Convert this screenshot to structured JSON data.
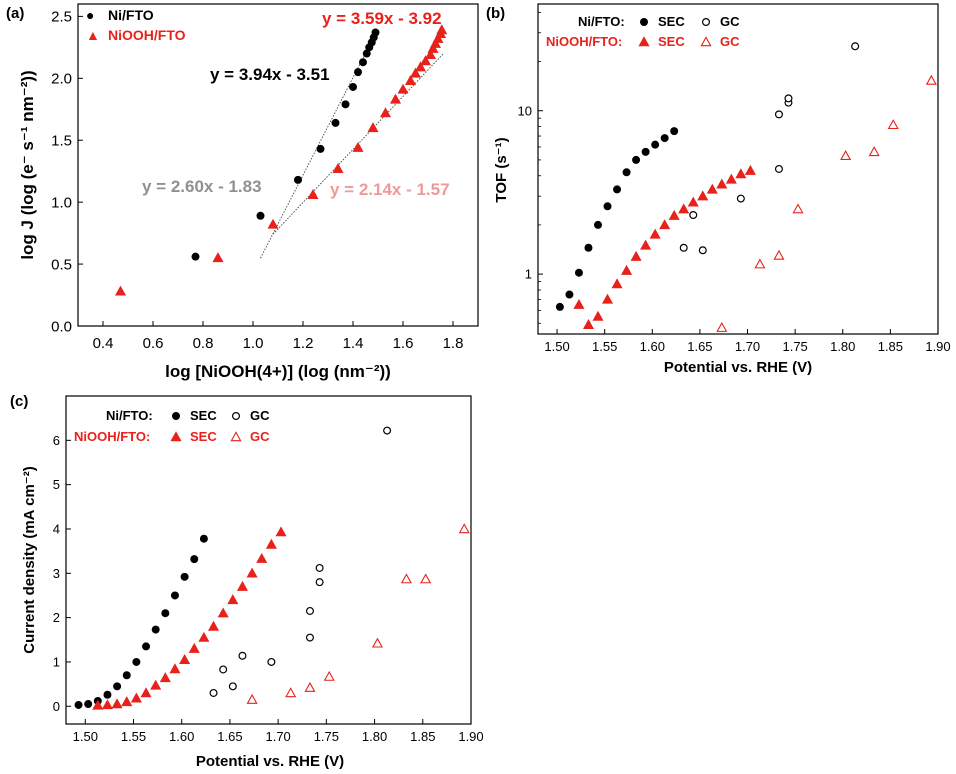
{
  "panels": [
    {
      "label": "(a)",
      "xlabel": "log [NiOOH(4+)] (log (nm⁻²))",
      "xticks": [
        "0.4",
        "0.6",
        "0.8",
        "1.0",
        "1.2",
        "1.4",
        "1.6",
        "1.8"
      ],
      "yticks": [
        "0.0",
        "0.5",
        "1.0",
        "1.5",
        "2.0",
        "2.5"
      ],
      "legend": [
        {
          "symbol": "●",
          "text": "Ni/FTO",
          "color": "#000000"
        },
        {
          "symbol": "▲",
          "text": "NiOOH/FTO",
          "color": "#e8221b"
        }
      ],
      "annotations": [
        {
          "text": "y = 3.59x - 3.92",
          "color": "#e8221b"
        },
        {
          "text": "y = 3.94x - 3.51",
          "color": "#000000"
        },
        {
          "text": "y = 2.60x - 1.83",
          "color": "#909090"
        },
        {
          "text": "y = 2.14x - 1.57",
          "color": "#ef9a9a"
        }
      ]
    },
    {
      "label": "(b)",
      "xlabel": "Potential vs. RHE (V)",
      "xticks": [
        "1.50",
        "1.55",
        "1.60",
        "1.65",
        "1.70",
        "1.75",
        "1.80",
        "1.85",
        "1.90"
      ],
      "yticks": [
        "1",
        "10"
      ],
      "legend": {
        "row1_label": "Ni/FTO:",
        "row2_label": "NiOOH/FTO:",
        "sec": "SEC",
        "gc": "GC"
      }
    },
    {
      "label": "(c)",
      "xlabel": "Potential vs. RHE (V)",
      "ylabel": "Current density (mA cm⁻²)",
      "xticks": [
        "1.50",
        "1.55",
        "1.60",
        "1.65",
        "1.70",
        "1.75",
        "1.80",
        "1.85",
        "1.90"
      ],
      "yticks": [
        "0",
        "1",
        "2",
        "3",
        "4",
        "5",
        "6"
      ],
      "legend": {
        "row1_label": "Ni/FTO:",
        "row2_label": "NiOOH/FTO:",
        "sec": "SEC",
        "gc": "GC"
      }
    }
  ],
  "colors": {
    "ni": "#000000",
    "niooh": "#e8221b",
    "grey_fit": "#909090",
    "pink_fit": "#ef9a9a"
  },
  "chart_data": [
    {
      "type": "scatter",
      "panel": "(a)",
      "ylabel": "log J (log (e⁻ s⁻¹ nm⁻²))",
      "xlim": [
        0.3,
        1.9
      ],
      "ylim": [
        0.0,
        2.6
      ],
      "series": [
        {
          "name": "Ni/FTO",
          "marker": "circle",
          "x": [
            0.77,
            1.03,
            1.18,
            1.27,
            1.33,
            1.37,
            1.4,
            1.42,
            1.44,
            1.455,
            1.465,
            1.475,
            1.483,
            1.49
          ],
          "y": [
            0.56,
            0.89,
            1.18,
            1.43,
            1.64,
            1.79,
            1.93,
            2.05,
            2.13,
            2.2,
            2.25,
            2.29,
            2.33,
            2.37
          ]
        },
        {
          "name": "NiOOH/FTO",
          "marker": "triangle",
          "x": [
            0.47,
            0.86,
            1.08,
            1.24,
            1.34,
            1.42,
            1.48,
            1.53,
            1.57,
            1.6,
            1.63,
            1.65,
            1.67,
            1.69,
            1.71,
            1.72,
            1.73,
            1.74,
            1.75,
            1.755
          ],
          "y": [
            0.28,
            0.55,
            0.82,
            1.06,
            1.27,
            1.44,
            1.6,
            1.72,
            1.83,
            1.91,
            1.98,
            2.04,
            2.09,
            2.14,
            2.19,
            2.24,
            2.28,
            2.32,
            2.36,
            2.39
          ]
        }
      ],
      "fit_lines": [
        {
          "equation": "y = 3.94x - 3.51",
          "x": [
            1.03,
            1.49
          ]
        },
        {
          "equation": "y = 2.14x - 1.57",
          "x": [
            1.08,
            1.76
          ]
        }
      ]
    },
    {
      "type": "scatter",
      "panel": "(b)",
      "ylabel": "TOF (s⁻¹)",
      "xlim": [
        1.48,
        1.9
      ],
      "ylim": [
        0.43,
        45
      ],
      "yscale": "log",
      "series": [
        {
          "name": "Ni/FTO SEC",
          "marker": "filled-circle",
          "x": [
            1.503,
            1.513,
            1.523,
            1.533,
            1.543,
            1.553,
            1.563,
            1.573,
            1.583,
            1.593,
            1.603,
            1.613,
            1.623
          ],
          "y": [
            0.63,
            0.75,
            1.02,
            1.45,
            2.0,
            2.6,
            3.3,
            4.2,
            5.0,
            5.6,
            6.2,
            6.8,
            7.5
          ]
        },
        {
          "name": "Ni/FTO GC",
          "marker": "open-circle",
          "x": [
            1.633,
            1.643,
            1.653,
            1.693,
            1.733,
            1.733,
            1.743,
            1.743,
            1.813
          ],
          "y": [
            1.45,
            2.3,
            1.4,
            2.9,
            4.4,
            9.5,
            11.2,
            11.9,
            24.8
          ]
        },
        {
          "name": "NiOOH/FTO SEC",
          "marker": "filled-triangle",
          "x": [
            1.523,
            1.533,
            1.543,
            1.553,
            1.563,
            1.573,
            1.583,
            1.593,
            1.603,
            1.613,
            1.623,
            1.633,
            1.643,
            1.653,
            1.663,
            1.673,
            1.683,
            1.693,
            1.703
          ],
          "y": [
            0.65,
            0.49,
            0.55,
            0.7,
            0.87,
            1.05,
            1.28,
            1.5,
            1.75,
            2.0,
            2.28,
            2.5,
            2.75,
            3.0,
            3.3,
            3.55,
            3.8,
            4.1,
            4.3
          ]
        },
        {
          "name": "NiOOH/FTO GC",
          "marker": "open-triangle",
          "x": [
            1.673,
            1.713,
            1.733,
            1.753,
            1.803,
            1.833,
            1.853,
            1.893
          ],
          "y": [
            0.47,
            1.15,
            1.3,
            2.5,
            5.3,
            5.6,
            8.2,
            15.3
          ]
        }
      ]
    },
    {
      "type": "scatter",
      "panel": "(c)",
      "ylabel": "Current density (mA cm⁻²)",
      "xlim": [
        1.48,
        1.9
      ],
      "ylim": [
        -0.4,
        7.0
      ],
      "series": [
        {
          "name": "Ni/FTO SEC",
          "marker": "filled-circle",
          "x": [
            1.493,
            1.503,
            1.513,
            1.523,
            1.533,
            1.543,
            1.553,
            1.563,
            1.573,
            1.583,
            1.593,
            1.603,
            1.613,
            1.623
          ],
          "y": [
            0.03,
            0.05,
            0.12,
            0.26,
            0.45,
            0.7,
            1.0,
            1.35,
            1.73,
            2.1,
            2.5,
            2.92,
            3.32,
            3.78
          ]
        },
        {
          "name": "Ni/FTO GC",
          "marker": "open-circle",
          "x": [
            1.633,
            1.643,
            1.653,
            1.663,
            1.693,
            1.733,
            1.733,
            1.743,
            1.743,
            1.813
          ],
          "y": [
            0.3,
            0.83,
            0.45,
            1.14,
            1.0,
            1.55,
            2.15,
            2.8,
            3.12,
            6.22
          ]
        },
        {
          "name": "NiOOH/FTO SEC",
          "marker": "filled-triangle",
          "x": [
            1.513,
            1.523,
            1.533,
            1.543,
            1.553,
            1.563,
            1.573,
            1.583,
            1.593,
            1.603,
            1.613,
            1.623,
            1.633,
            1.643,
            1.653,
            1.663,
            1.673,
            1.683,
            1.693,
            1.703
          ],
          "y": [
            0.02,
            0.03,
            0.05,
            0.1,
            0.18,
            0.3,
            0.47,
            0.64,
            0.84,
            1.05,
            1.3,
            1.55,
            1.8,
            2.1,
            2.4,
            2.7,
            3.0,
            3.33,
            3.65,
            3.93
          ]
        },
        {
          "name": "NiOOH/FTO GC",
          "marker": "open-triangle",
          "x": [
            1.673,
            1.713,
            1.733,
            1.753,
            1.803,
            1.833,
            1.853,
            1.893
          ],
          "y": [
            0.15,
            0.3,
            0.42,
            0.67,
            1.42,
            2.87,
            2.87,
            4.0
          ]
        }
      ]
    }
  ]
}
